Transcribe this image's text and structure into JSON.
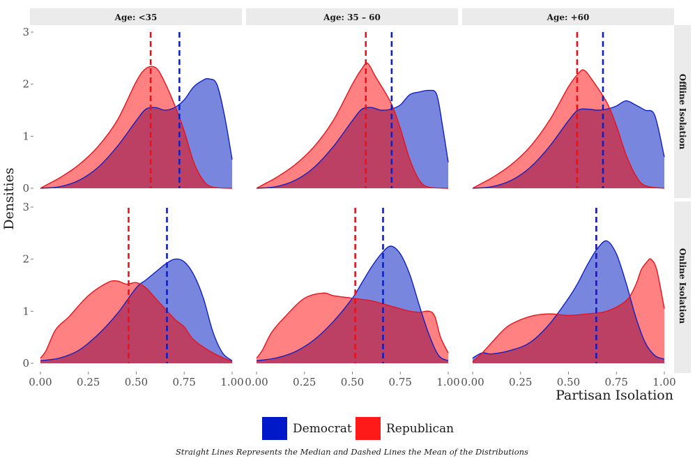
{
  "chart_data": {
    "type": "area",
    "title": "",
    "xlabel": "Partisan Isolation",
    "ylabel": "Densities",
    "xlim": [
      0,
      1
    ],
    "ylim": [
      0,
      3
    ],
    "x_ticks": [
      "0.00",
      "0.25",
      "0.50",
      "0.75",
      "1.00"
    ],
    "y_ticks": [
      "0",
      "1",
      "2",
      "3"
    ],
    "grid": false,
    "column_facets": [
      "Age: <35",
      "Age: 35 – 60",
      "Age: +60"
    ],
    "row_facets": [
      "Offline Isolation",
      "Online Isolation"
    ],
    "legend": {
      "position": "bottom",
      "entries": [
        {
          "label": "Democrat",
          "color": "#0019c8"
        },
        {
          "label": "Republican",
          "color": "#ff1a1a"
        }
      ]
    },
    "caption": "Straight Lines Represents the Median and Dashed Lines the Mean of the Distributions",
    "colors": {
      "democrat_fill": "#7887dd",
      "democrat_line": "#1020c0",
      "republican_fill": "#ff7a7a",
      "republican_line": "#e8121c",
      "overlap": "#bc4064"
    },
    "panels": [
      {
        "row": "Offline Isolation",
        "col": "Age: <35",
        "democrat_mean": 0.725,
        "republican_mean": 0.575,
        "democrat_x": [
          0,
          0.1,
          0.2,
          0.3,
          0.4,
          0.5,
          0.55,
          0.6,
          0.65,
          0.7,
          0.75,
          0.8,
          0.85,
          0.88,
          0.92,
          0.96,
          1.0
        ],
        "democrat_y": [
          0,
          0.03,
          0.15,
          0.4,
          0.8,
          1.3,
          1.52,
          1.55,
          1.5,
          1.55,
          1.7,
          1.95,
          2.08,
          2.1,
          2.0,
          1.4,
          0.55
        ],
        "republican_x": [
          0,
          0.05,
          0.1,
          0.2,
          0.3,
          0.4,
          0.5,
          0.55,
          0.6,
          0.64,
          0.7,
          0.75,
          0.8,
          0.85,
          0.9,
          1.0
        ],
        "republican_y": [
          0,
          0.1,
          0.2,
          0.45,
          0.8,
          1.3,
          2.05,
          2.3,
          2.32,
          2.1,
          1.6,
          1.1,
          0.5,
          0.15,
          0.02,
          0
        ]
      },
      {
        "row": "Offline Isolation",
        "col": "Age: 35 – 60",
        "democrat_mean": 0.705,
        "republican_mean": 0.57,
        "democrat_x": [
          0,
          0.1,
          0.2,
          0.3,
          0.4,
          0.5,
          0.55,
          0.6,
          0.65,
          0.7,
          0.75,
          0.8,
          0.85,
          0.9,
          0.94,
          0.97,
          1.0
        ],
        "democrat_y": [
          0,
          0.03,
          0.15,
          0.4,
          0.8,
          1.3,
          1.52,
          1.55,
          1.5,
          1.52,
          1.6,
          1.8,
          1.85,
          1.88,
          1.8,
          1.2,
          0.5
        ],
        "republican_x": [
          0,
          0.05,
          0.1,
          0.2,
          0.3,
          0.4,
          0.5,
          0.55,
          0.58,
          0.62,
          0.7,
          0.75,
          0.8,
          0.85,
          0.9,
          1.0
        ],
        "republican_y": [
          0,
          0.1,
          0.2,
          0.45,
          0.8,
          1.3,
          2.0,
          2.3,
          2.4,
          2.15,
          1.65,
          1.15,
          0.55,
          0.15,
          0.02,
          0
        ]
      },
      {
        "row": "Offline Isolation",
        "col": "Age: +60",
        "democrat_mean": 0.68,
        "republican_mean": 0.545,
        "democrat_x": [
          0,
          0.1,
          0.2,
          0.3,
          0.4,
          0.5,
          0.55,
          0.6,
          0.65,
          0.7,
          0.75,
          0.8,
          0.85,
          0.9,
          0.95,
          1.0
        ],
        "democrat_y": [
          0,
          0.03,
          0.15,
          0.4,
          0.8,
          1.3,
          1.5,
          1.52,
          1.5,
          1.52,
          1.58,
          1.68,
          1.6,
          1.5,
          1.4,
          0.6
        ],
        "republican_x": [
          0,
          0.05,
          0.1,
          0.2,
          0.3,
          0.4,
          0.5,
          0.55,
          0.58,
          0.62,
          0.7,
          0.75,
          0.8,
          0.85,
          0.9,
          1.0
        ],
        "republican_y": [
          0,
          0.1,
          0.2,
          0.45,
          0.8,
          1.3,
          1.95,
          2.2,
          2.27,
          2.1,
          1.65,
          1.2,
          0.65,
          0.25,
          0.05,
          0
        ]
      },
      {
        "row": "Online Isolation",
        "col": "Age: <35",
        "democrat_mean": 0.66,
        "republican_mean": 0.46,
        "democrat_x": [
          0,
          0.1,
          0.2,
          0.3,
          0.4,
          0.5,
          0.55,
          0.6,
          0.65,
          0.7,
          0.75,
          0.8,
          0.85,
          0.9,
          0.95,
          1.0
        ],
        "democrat_y": [
          0.05,
          0.1,
          0.25,
          0.55,
          0.95,
          1.45,
          1.6,
          1.75,
          1.9,
          2.0,
          1.95,
          1.7,
          1.25,
          0.6,
          0.2,
          0.05
        ],
        "republican_x": [
          0,
          0.03,
          0.08,
          0.15,
          0.25,
          0.35,
          0.4,
          0.45,
          0.5,
          0.55,
          0.6,
          0.7,
          0.75,
          0.8,
          0.9,
          1.0
        ],
        "republican_y": [
          0.1,
          0.25,
          0.65,
          0.9,
          1.3,
          1.55,
          1.58,
          1.52,
          1.55,
          1.45,
          1.25,
          0.85,
          0.7,
          0.45,
          0.2,
          0.03
        ]
      },
      {
        "row": "Online Isolation",
        "col": "Age: 35 – 60",
        "democrat_mean": 0.66,
        "republican_mean": 0.515,
        "democrat_x": [
          0,
          0.1,
          0.2,
          0.3,
          0.4,
          0.5,
          0.55,
          0.6,
          0.65,
          0.7,
          0.75,
          0.8,
          0.85,
          0.9,
          0.95,
          1.0
        ],
        "democrat_y": [
          0.05,
          0.1,
          0.22,
          0.45,
          0.8,
          1.25,
          1.55,
          1.85,
          2.1,
          2.25,
          2.1,
          1.7,
          1.1,
          0.55,
          0.15,
          0.05
        ],
        "republican_x": [
          0,
          0.03,
          0.08,
          0.15,
          0.25,
          0.35,
          0.4,
          0.5,
          0.6,
          0.7,
          0.8,
          0.85,
          0.9,
          0.93,
          0.96,
          1.0
        ],
        "republican_y": [
          0.1,
          0.25,
          0.6,
          0.9,
          1.25,
          1.35,
          1.3,
          1.25,
          1.2,
          1.1,
          1.0,
          0.98,
          1.0,
          0.9,
          0.5,
          0.2
        ]
      },
      {
        "row": "Online Isolation",
        "col": "Age: +60",
        "democrat_mean": 0.645,
        "republican_mean": 0.645,
        "democrat_x": [
          0,
          0.05,
          0.1,
          0.2,
          0.3,
          0.4,
          0.5,
          0.55,
          0.6,
          0.65,
          0.7,
          0.75,
          0.8,
          0.85,
          0.9,
          0.95,
          1.0
        ],
        "democrat_y": [
          0.1,
          0.2,
          0.18,
          0.25,
          0.4,
          0.75,
          1.25,
          1.55,
          1.9,
          2.2,
          2.35,
          2.1,
          1.55,
          0.9,
          0.4,
          0.15,
          0.08
        ],
        "republican_x": [
          0,
          0.05,
          0.1,
          0.15,
          0.2,
          0.3,
          0.4,
          0.5,
          0.6,
          0.7,
          0.8,
          0.85,
          0.88,
          0.91,
          0.93,
          0.96,
          1.0
        ],
        "republican_y": [
          0.03,
          0.2,
          0.4,
          0.6,
          0.75,
          0.9,
          0.95,
          0.92,
          0.95,
          1.0,
          1.2,
          1.5,
          1.8,
          1.95,
          2.0,
          1.8,
          1.05
        ]
      }
    ]
  }
}
